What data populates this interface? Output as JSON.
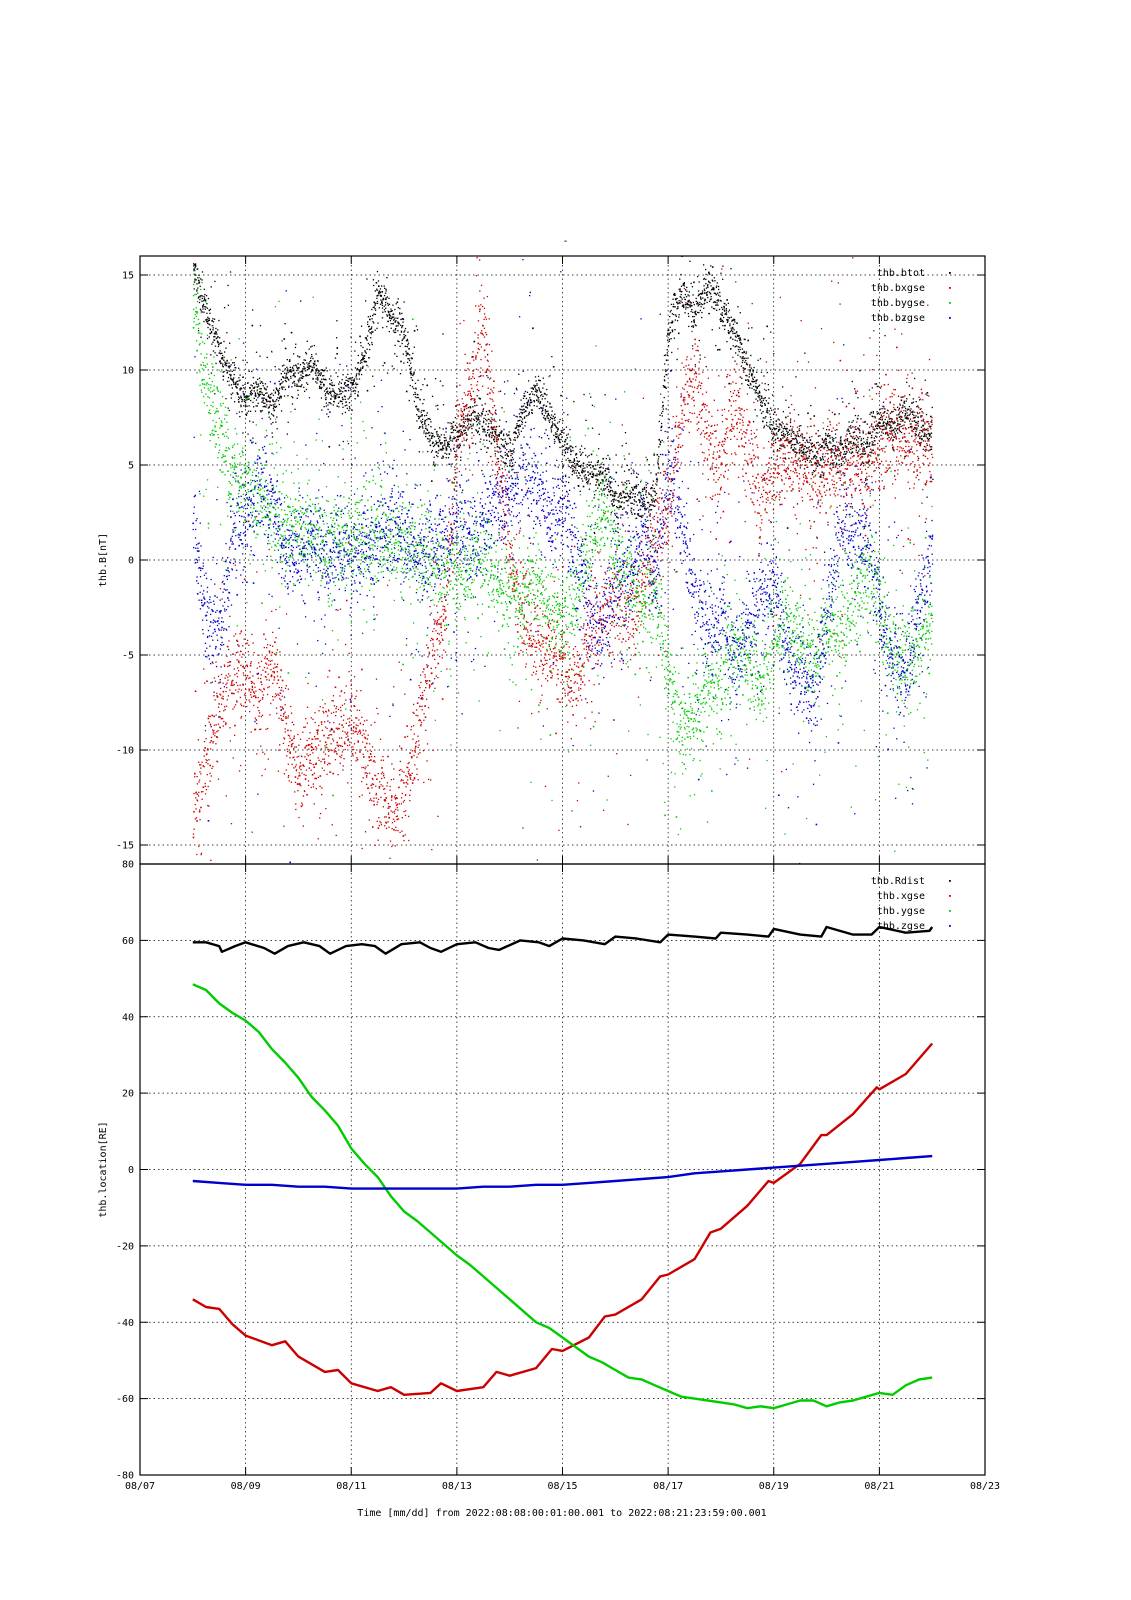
{
  "page_title": "-",
  "xlabel": "Time [mm/dd]  from 2022:08:08:00:01:00.001  to  2022:08:21:23:59:00.001",
  "colors": {
    "black": "#000000",
    "red": "#cc0000",
    "green": "#00cc00",
    "blue": "#0000cc",
    "grid": "#000000"
  },
  "chart_data": [
    {
      "type": "scatter",
      "ylabel": "thb.B[nT]",
      "ylim": [
        -16,
        16
      ],
      "yticks": [
        -15,
        -10,
        -5,
        0,
        5,
        10,
        15
      ],
      "xlim": [
        "08/07",
        "08/23"
      ],
      "xticks": [
        "08/07",
        "08/09",
        "08/11",
        "08/13",
        "08/15",
        "08/17",
        "08/19",
        "08/21",
        "08/23"
      ],
      "xlim_days": [
        7,
        23
      ],
      "grid": true,
      "legend_position": "top-right",
      "series": [
        {
          "name": "thb.btot",
          "color": "#000000",
          "x": [
            8.0,
            8.25,
            8.5,
            8.75,
            9.0,
            9.25,
            9.5,
            9.75,
            10.0,
            10.25,
            10.5,
            10.75,
            11.0,
            11.25,
            11.5,
            11.75,
            12.0,
            12.25,
            12.5,
            12.75,
            13.0,
            13.25,
            13.5,
            13.75,
            14.0,
            14.25,
            14.5,
            14.75,
            15.0,
            15.25,
            15.5,
            15.75,
            16.0,
            16.25,
            16.5,
            16.75,
            17.0,
            17.25,
            17.5,
            17.75,
            18.0,
            18.25,
            18.5,
            18.75,
            19.0,
            19.25,
            19.5,
            19.75,
            20.0,
            20.25,
            20.5,
            20.75,
            21.0,
            21.25,
            21.5,
            21.75,
            22.0
          ],
          "y": [
            15.5,
            13.0,
            11.0,
            9.5,
            8.5,
            9.0,
            8.0,
            10.0,
            9.5,
            10.5,
            9.0,
            8.5,
            9.0,
            11.0,
            14.0,
            13.0,
            12.0,
            8.0,
            6.5,
            6.0,
            6.5,
            7.5,
            7.0,
            6.5,
            5.5,
            8.0,
            9.0,
            7.5,
            6.0,
            5.0,
            4.5,
            4.5,
            3.0,
            3.5,
            3.0,
            3.5,
            12.0,
            14.0,
            13.0,
            14.5,
            13.5,
            12.0,
            10.0,
            8.5,
            7.0,
            6.5,
            6.0,
            5.5,
            6.0,
            5.5,
            6.5,
            6.0,
            7.5,
            7.0,
            8.0,
            7.0,
            6.5
          ]
        },
        {
          "name": "thb.bxgse",
          "color": "#cc0000",
          "x": [
            8.0,
            8.25,
            8.5,
            8.75,
            9.0,
            9.25,
            9.5,
            9.75,
            10.0,
            10.25,
            10.5,
            10.75,
            11.0,
            11.25,
            11.5,
            11.75,
            12.0,
            12.25,
            12.5,
            12.75,
            13.0,
            13.25,
            13.5,
            13.75,
            14.0,
            14.25,
            14.5,
            14.75,
            15.0,
            15.25,
            15.5,
            15.75,
            16.0,
            16.25,
            16.5,
            16.75,
            17.0,
            17.25,
            17.5,
            17.75,
            18.0,
            18.25,
            18.5,
            18.75,
            19.0,
            19.25,
            19.5,
            19.75,
            20.0,
            20.25,
            20.5,
            20.75,
            21.0,
            21.25,
            21.5,
            21.75,
            22.0
          ],
          "y": [
            -13.0,
            -11.0,
            -7.5,
            -6.5,
            -6.0,
            -7.0,
            -5.0,
            -9.0,
            -11.0,
            -10.0,
            -9.5,
            -9.0,
            -8.5,
            -10.0,
            -12.5,
            -13.0,
            -12.0,
            -9.0,
            -5.0,
            -3.0,
            6.0,
            9.0,
            12.0,
            5.0,
            1.0,
            -3.0,
            -4.5,
            -5.0,
            -5.5,
            -6.5,
            -4.0,
            -3.0,
            -2.5,
            -3.0,
            -1.0,
            1.0,
            3.0,
            8.0,
            10.0,
            6.0,
            5.0,
            8.0,
            6.0,
            3.0,
            5.0,
            5.5,
            5.0,
            4.0,
            5.0,
            4.5,
            5.0,
            4.5,
            6.0,
            7.0,
            6.5,
            6.0,
            5.5
          ]
        },
        {
          "name": "thb.bygse",
          "color": "#00cc00",
          "x": [
            8.0,
            8.25,
            8.5,
            8.75,
            9.0,
            9.25,
            9.5,
            9.75,
            10.0,
            10.25,
            10.5,
            10.75,
            11.0,
            11.25,
            11.5,
            11.75,
            12.0,
            12.25,
            12.5,
            12.75,
            13.0,
            13.25,
            13.5,
            13.75,
            14.0,
            14.25,
            14.5,
            14.75,
            15.0,
            15.25,
            15.5,
            15.75,
            16.0,
            16.25,
            16.5,
            16.75,
            17.0,
            17.25,
            17.5,
            17.75,
            18.0,
            18.25,
            18.5,
            18.75,
            19.0,
            19.25,
            19.5,
            19.75,
            20.0,
            20.25,
            20.5,
            20.75,
            21.0,
            21.25,
            21.5,
            21.75,
            22.0
          ],
          "y": [
            14.0,
            9.0,
            7.0,
            5.0,
            4.0,
            3.0,
            2.5,
            2.0,
            1.5,
            1.5,
            1.0,
            1.0,
            1.0,
            1.0,
            1.5,
            1.0,
            1.0,
            0.5,
            0.0,
            -0.5,
            -1.0,
            -0.5,
            0.0,
            -1.0,
            -1.5,
            -2.0,
            -1.0,
            -2.5,
            -3.0,
            -2.0,
            1.0,
            2.5,
            0.5,
            -1.0,
            -2.0,
            -1.5,
            -6.0,
            -9.0,
            -8.0,
            -7.0,
            -6.0,
            -5.0,
            -5.5,
            -6.0,
            -4.0,
            -3.0,
            -4.5,
            -5.0,
            -3.5,
            -4.0,
            -2.5,
            -1.0,
            -2.0,
            -5.0,
            -5.5,
            -4.0,
            -3.0
          ]
        },
        {
          "name": "thb.bzgse",
          "color": "#0000cc",
          "x": [
            8.0,
            8.25,
            8.5,
            8.75,
            9.0,
            9.25,
            9.5,
            9.75,
            10.0,
            10.25,
            10.5,
            10.75,
            11.0,
            11.25,
            11.5,
            11.75,
            12.0,
            12.25,
            12.5,
            12.75,
            13.0,
            13.25,
            13.5,
            13.75,
            14.0,
            14.25,
            14.5,
            14.75,
            15.0,
            15.25,
            15.5,
            15.75,
            16.0,
            16.25,
            16.5,
            16.75,
            17.0,
            17.25,
            17.5,
            17.75,
            18.0,
            18.25,
            18.5,
            18.75,
            19.0,
            19.25,
            19.5,
            19.75,
            20.0,
            20.25,
            20.5,
            20.75,
            21.0,
            21.25,
            21.5,
            21.75,
            22.0
          ],
          "y": [
            2.0,
            -3.0,
            -4.0,
            1.0,
            2.0,
            4.0,
            3.0,
            0.5,
            0.5,
            1.0,
            0.0,
            0.5,
            0.0,
            0.5,
            1.0,
            2.0,
            1.5,
            0.5,
            0.0,
            1.0,
            2.0,
            1.0,
            2.5,
            3.0,
            3.0,
            5.0,
            4.0,
            2.0,
            3.0,
            0.5,
            -3.0,
            -4.0,
            -0.5,
            -1.0,
            2.0,
            -1.0,
            5.0,
            2.0,
            -2.0,
            -4.0,
            -3.0,
            -6.0,
            -3.0,
            -2.0,
            -1.0,
            -5.0,
            -6.0,
            -7.0,
            -3.0,
            2.0,
            1.0,
            1.5,
            -3.0,
            -5.0,
            -6.0,
            -2.0,
            0.5
          ]
        }
      ]
    },
    {
      "type": "line",
      "ylabel": "thb.location[RE]",
      "ylim": [
        -80,
        80
      ],
      "yticks": [
        -80,
        -60,
        -40,
        -20,
        0,
        20,
        40,
        60,
        80
      ],
      "xlim": [
        "08/07",
        "08/23"
      ],
      "xticks": [
        "08/07",
        "08/09",
        "08/11",
        "08/13",
        "08/15",
        "08/17",
        "08/19",
        "08/21",
        "08/23"
      ],
      "xlim_days": [
        7,
        23
      ],
      "grid": true,
      "legend_position": "top-right",
      "series": [
        {
          "name": "thb.Rdist",
          "color": "#000000",
          "x": [
            8.0,
            8.25,
            8.5,
            8.55,
            8.8,
            9.0,
            9.35,
            9.55,
            9.8,
            10.1,
            10.4,
            10.6,
            10.9,
            11.2,
            11.45,
            11.65,
            11.95,
            12.3,
            12.5,
            12.7,
            13.0,
            13.35,
            13.6,
            13.8,
            14.2,
            14.55,
            14.75,
            15.0,
            15.4,
            15.8,
            16.0,
            16.4,
            16.85,
            17.0,
            17.5,
            17.9,
            18.0,
            18.5,
            18.9,
            19.0,
            19.5,
            19.9,
            20.0,
            20.5,
            20.85,
            21.0,
            21.5,
            21.95,
            22.0
          ],
          "y": [
            59.5,
            59.5,
            58.5,
            57.0,
            58.5,
            59.5,
            58.0,
            56.5,
            58.5,
            59.5,
            58.5,
            56.5,
            58.5,
            59.0,
            58.5,
            56.5,
            59.0,
            59.5,
            58.0,
            57.0,
            59.0,
            59.5,
            58.0,
            57.5,
            60.0,
            59.5,
            58.5,
            60.5,
            60.0,
            59.0,
            61.0,
            60.5,
            59.5,
            61.5,
            61.0,
            60.5,
            62.0,
            61.5,
            61.0,
            63.0,
            61.5,
            61.0,
            63.5,
            61.5,
            61.5,
            63.5,
            62.0,
            62.5,
            63.5
          ]
        },
        {
          "name": "thb.xgse",
          "color": "#cc0000",
          "x": [
            8.0,
            8.25,
            8.5,
            8.75,
            9.0,
            9.5,
            9.75,
            10.0,
            10.5,
            10.75,
            11.0,
            11.5,
            11.75,
            12.0,
            12.5,
            12.7,
            13.0,
            13.5,
            13.75,
            14.0,
            14.5,
            14.8,
            15.0,
            15.5,
            15.8,
            16.0,
            16.5,
            16.85,
            17.0,
            17.5,
            17.8,
            18.0,
            18.5,
            18.9,
            19.0,
            19.5,
            19.9,
            20.0,
            20.5,
            20.95,
            21.0,
            21.5,
            22.0
          ],
          "y": [
            -34.0,
            -36.0,
            -36.5,
            -40.5,
            -43.5,
            -46.0,
            -45.0,
            -49.0,
            -53.0,
            -52.5,
            -56.0,
            -58.0,
            -57.0,
            -59.0,
            -58.5,
            -56.0,
            -58.0,
            -57.0,
            -53.0,
            -54.0,
            -52.0,
            -47.0,
            -47.5,
            -44.0,
            -38.5,
            -38.0,
            -34.0,
            -28.0,
            -27.5,
            -23.5,
            -16.5,
            -15.5,
            -9.5,
            -3.0,
            -3.5,
            1.5,
            9.0,
            9.0,
            14.5,
            21.5,
            21.0,
            25.0,
            33.0
          ]
        },
        {
          "name": "thb.ygse",
          "color": "#00cc00",
          "x": [
            8.0,
            8.25,
            8.5,
            8.75,
            9.0,
            9.25,
            9.5,
            9.75,
            10.0,
            10.25,
            10.5,
            10.75,
            11.0,
            11.25,
            11.5,
            11.75,
            12.0,
            12.25,
            12.5,
            12.75,
            13.0,
            13.25,
            13.5,
            13.75,
            14.0,
            14.25,
            14.5,
            14.75,
            15.0,
            15.25,
            15.5,
            15.75,
            16.0,
            16.25,
            16.5,
            16.75,
            17.0,
            17.25,
            17.5,
            17.75,
            18.0,
            18.25,
            18.5,
            18.75,
            19.0,
            19.25,
            19.5,
            19.75,
            20.0,
            20.25,
            20.5,
            20.75,
            21.0,
            21.25,
            21.5,
            21.75,
            22.0
          ],
          "y": [
            48.5,
            47.0,
            43.5,
            41.0,
            39.0,
            36.0,
            31.5,
            28.0,
            24.0,
            19.0,
            15.5,
            11.5,
            5.5,
            1.5,
            -2.0,
            -7.0,
            -11.0,
            -13.5,
            -16.5,
            -19.5,
            -22.5,
            -25.0,
            -28.0,
            -31.0,
            -34.0,
            -37.0,
            -40.0,
            -41.5,
            -44.0,
            -46.5,
            -49.0,
            -50.5,
            -52.5,
            -54.5,
            -55.0,
            -56.5,
            -58.0,
            -59.5,
            -60.0,
            -60.5,
            -61.0,
            -61.5,
            -62.5,
            -62.0,
            -62.5,
            -61.5,
            -60.5,
            -60.5,
            -62.0,
            -61.0,
            -60.5,
            -59.5,
            -58.5,
            -59.0,
            -56.5,
            -55.0,
            -54.5
          ]
        },
        {
          "name": "thb.zgse",
          "color": "#0000cc",
          "x": [
            8.0,
            8.5,
            9.0,
            9.5,
            10.0,
            10.5,
            11.0,
            11.5,
            12.0,
            12.5,
            13.0,
            13.5,
            14.0,
            14.5,
            15.0,
            15.5,
            16.0,
            16.5,
            17.0,
            17.5,
            18.0,
            18.5,
            19.0,
            19.5,
            20.0,
            20.5,
            21.0,
            21.5,
            22.0
          ],
          "y": [
            -3.0,
            -3.5,
            -4.0,
            -4.0,
            -4.5,
            -4.5,
            -5.0,
            -5.0,
            -5.0,
            -5.0,
            -5.0,
            -4.5,
            -4.5,
            -4.0,
            -4.0,
            -3.5,
            -3.0,
            -2.5,
            -2.0,
            -1.0,
            -0.5,
            0.0,
            0.5,
            1.0,
            1.5,
            2.0,
            2.5,
            3.0,
            3.5
          ]
        }
      ]
    }
  ]
}
